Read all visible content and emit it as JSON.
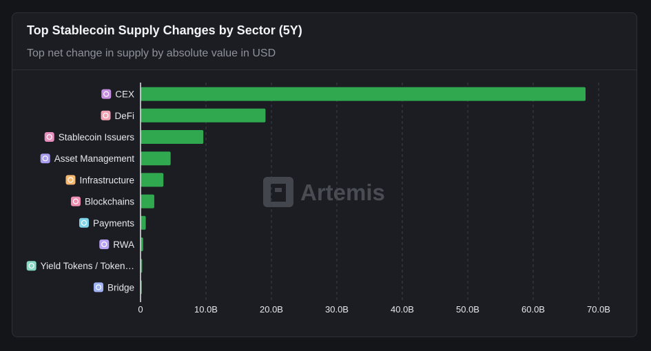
{
  "header": {
    "title": "Top Stablecoin Supply Changes by Sector (5Y)",
    "subtitle": "Top net change in supply by absolute value in USD"
  },
  "watermark": {
    "text": "Artemis",
    "icon": "artemis-logo-icon"
  },
  "colors": {
    "bar": "#2fa84f",
    "grid": "#3d4049",
    "axis": "#e6e7ea"
  },
  "chart_data": {
    "type": "bar",
    "orientation": "horizontal",
    "title": "Top Stablecoin Supply Changes by Sector (5Y)",
    "subtitle": "Top net change in supply by absolute value in USD",
    "categories": [
      "CEX",
      "DeFi",
      "Stablecoin Issuers",
      "Asset Management",
      "Infrastructure",
      "Blockchains",
      "Payments",
      "RWA",
      "Yield Tokens / Token…",
      "Bridge"
    ],
    "category_icons": [
      "cex-icon",
      "defi-icon",
      "stablecoin-issuers-icon",
      "asset-management-icon",
      "infrastructure-icon",
      "blockchains-icon",
      "payments-icon",
      "rwa-icon",
      "yield-tokens-icon",
      "bridge-icon"
    ],
    "category_icon_colors": [
      "#c58ee0",
      "#f2a4b4",
      "#e88fc0",
      "#a99bf0",
      "#f5b870",
      "#f08fb2",
      "#7ed4e8",
      "#b8a0f2",
      "#86d9c2",
      "#a0b4f5"
    ],
    "values": [
      68.0,
      19.1,
      9.6,
      4.6,
      3.5,
      2.1,
      0.8,
      0.4,
      0.25,
      0.2
    ],
    "xlim": [
      0,
      70
    ],
    "x_ticks": [
      0,
      10,
      20,
      30,
      40,
      50,
      60,
      70
    ],
    "x_tick_labels": [
      "0",
      "10.0B",
      "20.0B",
      "30.0B",
      "40.0B",
      "50.0B",
      "60.0B",
      "70.0B"
    ],
    "grid": "vertical-dashed",
    "legend": "none"
  }
}
